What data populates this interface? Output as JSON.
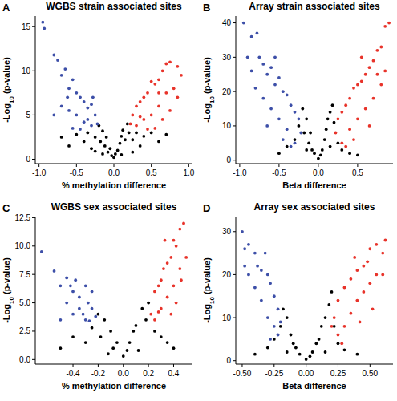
{
  "chart_data": [
    {
      "type": "scatter",
      "title": "WGBS strain associated sites",
      "annotations": [
        "A"
      ],
      "x_label": "% methylation difference",
      "y_label": "-Log10 (p-value)",
      "xlim": [
        -1.05,
        1.05
      ],
      "ylim": [
        -0.5,
        16.2
      ],
      "xticks": [
        {
          "value": -1,
          "label": "-1.0"
        },
        -0.5,
        {
          "value": 0,
          "label": "0.0"
        },
        0.5,
        {
          "value": 1,
          "label": "1.0"
        }
      ],
      "yticks": [
        0,
        5,
        10,
        15
      ],
      "series": [
        {
          "color": "#000000",
          "marker": "circle",
          "x": [
            -0.6,
            -0.5,
            -0.4,
            -0.35,
            -0.3,
            -0.25,
            -0.2,
            -0.18,
            -0.15,
            -0.12,
            -0.1,
            -0.08,
            -0.05,
            -0.03,
            0,
            0.02,
            0.05,
            0.08,
            0.1,
            0.12,
            0.15,
            0.18,
            0.2,
            0.25,
            0.3,
            0.35,
            0.4,
            0.5,
            0.6,
            0.7,
            -0.7,
            0.1,
            -0.15,
            0.25,
            -0.25
          ],
          "values": [
            1.5,
            2.8,
            2.0,
            3.0,
            1.2,
            2.5,
            3.8,
            2.0,
            3.2,
            1.5,
            2.5,
            0.8,
            1.2,
            0.4,
            0.2,
            0.6,
            1.0,
            1.8,
            2.6,
            3.3,
            2.2,
            4.0,
            3.0,
            2.2,
            3.0,
            1.5,
            2.6,
            3.0,
            2.0,
            2.8,
            2.5,
            0.5,
            0.6,
            0.8,
            0.9
          ]
        },
        {
          "color": "#3d4fa8",
          "marker": "circle",
          "x": [
            -0.95,
            -0.93,
            -0.8,
            -0.75,
            -0.7,
            -0.65,
            -0.6,
            -0.55,
            -0.5,
            -0.45,
            -0.4,
            -0.35,
            -0.3,
            -0.25,
            -0.22,
            -0.3,
            -0.4,
            -0.5,
            -0.6,
            -0.7,
            -0.8,
            -0.55,
            -0.45,
            -0.35,
            -0.28,
            -0.62
          ],
          "values": [
            15.5,
            14.8,
            11.8,
            11.2,
            9.5,
            10.2,
            8.0,
            9.0,
            7.5,
            7.0,
            6.5,
            5.8,
            6.2,
            5.0,
            4.0,
            3.8,
            4.2,
            5.0,
            5.5,
            6.0,
            5.0,
            3.5,
            3.4,
            4.5,
            7.0,
            7.0
          ]
        },
        {
          "color": "#e8332a",
          "marker": "circle",
          "x": [
            0.9,
            0.85,
            0.75,
            0.7,
            0.65,
            0.6,
            0.55,
            0.5,
            0.45,
            0.4,
            0.35,
            0.3,
            0.25,
            0.22,
            0.3,
            0.4,
            0.5,
            0.6,
            0.7,
            0.8,
            0.65,
            0.55,
            0.45,
            0.75,
            0.35,
            0.6,
            0.85
          ],
          "values": [
            9.5,
            10.5,
            11.0,
            10.8,
            10.0,
            9.0,
            8.5,
            8.8,
            7.5,
            7.0,
            6.5,
            6.0,
            5.0,
            4.0,
            3.8,
            4.5,
            5.0,
            6.0,
            7.5,
            8.0,
            4.5,
            3.5,
            3.4,
            5.5,
            4.8,
            7.5,
            7.0
          ]
        }
      ]
    },
    {
      "type": "scatter",
      "title": "Array strain associated sites",
      "annotations": [
        "B"
      ],
      "x_label": "Beta difference",
      "y_label": "-Log10 (p-value)",
      "xlim": [
        -1.05,
        0.95
      ],
      "ylim": [
        -1,
        42
      ],
      "xticks": [
        {
          "value": -1,
          "label": "-1.0"
        },
        -0.5,
        {
          "value": 0,
          "label": "0.0"
        },
        0.5
      ],
      "yticks": [
        0,
        10,
        20,
        30,
        40
      ],
      "series": [
        {
          "color": "#000000",
          "marker": "circle",
          "x": [
            -0.4,
            -0.3,
            -0.25,
            -0.2,
            -0.18,
            -0.15,
            -0.12,
            -0.1,
            -0.08,
            -0.05,
            0,
            0.03,
            0.05,
            0.08,
            0.1,
            0.12,
            0.15,
            0.18,
            0.2,
            0.25,
            0.3,
            0.4,
            -0.5,
            0.5,
            -0.15,
            0.15
          ],
          "values": [
            4,
            6,
            10,
            15,
            8,
            12,
            5,
            8,
            3,
            2,
            0.5,
            1.5,
            3,
            6,
            9,
            12,
            14,
            16,
            11,
            5,
            3,
            2,
            2,
            1.5,
            3,
            4
          ]
        },
        {
          "color": "#3d4fa8",
          "marker": "circle",
          "x": [
            -0.95,
            -0.85,
            -0.78,
            -0.9,
            -0.75,
            -0.7,
            -0.65,
            -0.6,
            -0.55,
            -0.5,
            -0.45,
            -0.4,
            -0.35,
            -0.3,
            -0.25,
            -0.22,
            -0.3,
            -0.4,
            -0.5,
            -0.6,
            -0.7,
            -0.8,
            -0.65,
            -0.45,
            -0.35,
            -0.85,
            -0.55
          ],
          "values": [
            40,
            36,
            37,
            30,
            30,
            28,
            25,
            27,
            22,
            24,
            20,
            19,
            16,
            14,
            12,
            8,
            5,
            9,
            12,
            15,
            18,
            21,
            10,
            6,
            4,
            26,
            30
          ]
        },
        {
          "color": "#e8332a",
          "marker": "circle",
          "x": [
            0.9,
            0.85,
            0.8,
            0.75,
            0.7,
            0.65,
            0.6,
            0.55,
            0.5,
            0.45,
            0.4,
            0.35,
            0.3,
            0.25,
            0.22,
            0.3,
            0.4,
            0.5,
            0.6,
            0.7,
            0.8,
            0.65,
            0.45,
            0.35,
            0.85,
            0.55,
            0.75
          ],
          "values": [
            40,
            39,
            33,
            32,
            29,
            27,
            25,
            23,
            22,
            21,
            18,
            16,
            14,
            12,
            8,
            5,
            9,
            12,
            15,
            18,
            22,
            10,
            6,
            4,
            26,
            30,
            25
          ]
        }
      ]
    },
    {
      "type": "scatter",
      "title": "WGBS sex associated sites",
      "annotations": [
        "C"
      ],
      "x_label": "% methylation difference",
      "y_label": "-Log10 (p-value)",
      "xlim": [
        -0.7,
        0.55
      ],
      "ylim": [
        -0.4,
        12.6
      ],
      "xticks": [
        -0.4,
        -0.2,
        {
          "value": 0,
          "label": "0.0"
        },
        0.2,
        0.4
      ],
      "yticks": [
        {
          "value": 0,
          "label": "0.0"
        },
        2.5,
        {
          "value": 5,
          "label": "5.0"
        },
        7.5,
        {
          "value": 10,
          "label": "10.0"
        },
        12.5
      ],
      "series": [
        {
          "color": "#000000",
          "marker": "circle",
          "x": [
            -0.4,
            -0.3,
            -0.25,
            -0.2,
            -0.18,
            -0.15,
            -0.1,
            -0.08,
            -0.05,
            0,
            0.03,
            0.05,
            0.08,
            0.1,
            0.15,
            0.18,
            0.2,
            0.25,
            0.3,
            0.35,
            -0.5,
            0.4,
            -0.12,
            0.12
          ],
          "values": [
            2,
            1.5,
            2.8,
            4,
            2,
            3.5,
            2.5,
            1,
            1.5,
            0.3,
            0.8,
            1.5,
            2.5,
            3,
            4.5,
            3.5,
            5,
            2.5,
            2,
            1.5,
            1,
            1,
            0.5,
            0.8
          ]
        },
        {
          "color": "#3d4fa8",
          "marker": "circle",
          "x": [
            -0.65,
            -0.55,
            -0.5,
            -0.45,
            -0.4,
            -0.38,
            -0.35,
            -0.3,
            -0.28,
            -0.25,
            -0.22,
            -0.3,
            -0.4,
            -0.35,
            -0.45,
            -0.25,
            -0.5,
            -0.32,
            -0.42,
            -0.27
          ],
          "values": [
            9.5,
            7.8,
            6.5,
            7.2,
            6,
            7,
            5.5,
            6.5,
            5,
            4.5,
            3.8,
            3.5,
            4,
            4.5,
            5,
            6,
            3.5,
            4,
            6.5,
            3.4
          ]
        },
        {
          "color": "#e8332a",
          "marker": "circle",
          "x": [
            0.48,
            0.45,
            0.42,
            0.4,
            0.38,
            0.35,
            0.32,
            0.3,
            0.28,
            0.25,
            0.22,
            0.25,
            0.3,
            0.35,
            0.4,
            0.45,
            0.5,
            0.38,
            0.42,
            0.28,
            0.33,
            0.46
          ],
          "values": [
            12,
            11.5,
            10,
            10.5,
            9,
            8.5,
            8,
            7,
            6.5,
            6,
            4,
            3.5,
            4.5,
            5.5,
            6.5,
            8,
            9,
            4,
            5,
            4.2,
            10.5,
            7
          ]
        }
      ]
    },
    {
      "type": "scatter",
      "title": "Array sex associated sites",
      "annotations": [
        "D"
      ],
      "x_label": "Beta difference",
      "y_label": "-Log10 (p-value)",
      "xlim": [
        -0.55,
        0.68
      ],
      "ylim": [
        -0.8,
        33.5
      ],
      "xticks": [
        {
          "value": -0.5,
          "label": "-0.50"
        },
        -0.25,
        {
          "value": 0,
          "label": "0.00"
        },
        0.25,
        {
          "value": 0.5,
          "label": "0.50"
        }
      ],
      "yticks": [
        0,
        10,
        20,
        30
      ],
      "series": [
        {
          "color": "#000000",
          "marker": "circle",
          "x": [
            -0.3,
            -0.25,
            -0.2,
            -0.18,
            -0.15,
            -0.12,
            -0.1,
            -0.08,
            -0.05,
            0,
            0.03,
            0.05,
            0.08,
            0.1,
            0.12,
            0.15,
            0.18,
            0.2,
            0.22,
            0.25,
            0.3,
            0.4,
            -0.4,
            -0.15,
            0.15
          ],
          "values": [
            3,
            5,
            8,
            12,
            10,
            6,
            4,
            3,
            1.5,
            0.3,
            1,
            2,
            4,
            5,
            8,
            10,
            13,
            16,
            8,
            4,
            2.5,
            1.5,
            1.5,
            2,
            2
          ]
        },
        {
          "color": "#3d4fa8",
          "marker": "circle",
          "x": [
            -0.5,
            -0.48,
            -0.45,
            -0.4,
            -0.38,
            -0.35,
            -0.3,
            -0.28,
            -0.25,
            -0.22,
            -0.2,
            -0.25,
            -0.3,
            -0.35,
            -0.4,
            -0.45,
            -0.48,
            -0.32,
            -0.22,
            -0.28
          ],
          "values": [
            30,
            26,
            27,
            25,
            22,
            21,
            20,
            18,
            15,
            12,
            9,
            8,
            10,
            14,
            17,
            20,
            22,
            25,
            6,
            5
          ]
        },
        {
          "color": "#e8332a",
          "marker": "circle",
          "x": [
            0.62,
            0.6,
            0.55,
            0.5,
            0.48,
            0.45,
            0.4,
            0.35,
            0.3,
            0.25,
            0.22,
            0.2,
            0.25,
            0.3,
            0.35,
            0.4,
            0.45,
            0.5,
            0.55,
            0.6,
            0.28,
            0.42,
            0.52,
            0.38
          ],
          "values": [
            28,
            25,
            27,
            26,
            23,
            22,
            21,
            19,
            17,
            14,
            10,
            8,
            6,
            8,
            11,
            14,
            16,
            18,
            20,
            20,
            4,
            9,
            12,
            24
          ]
        }
      ]
    }
  ]
}
